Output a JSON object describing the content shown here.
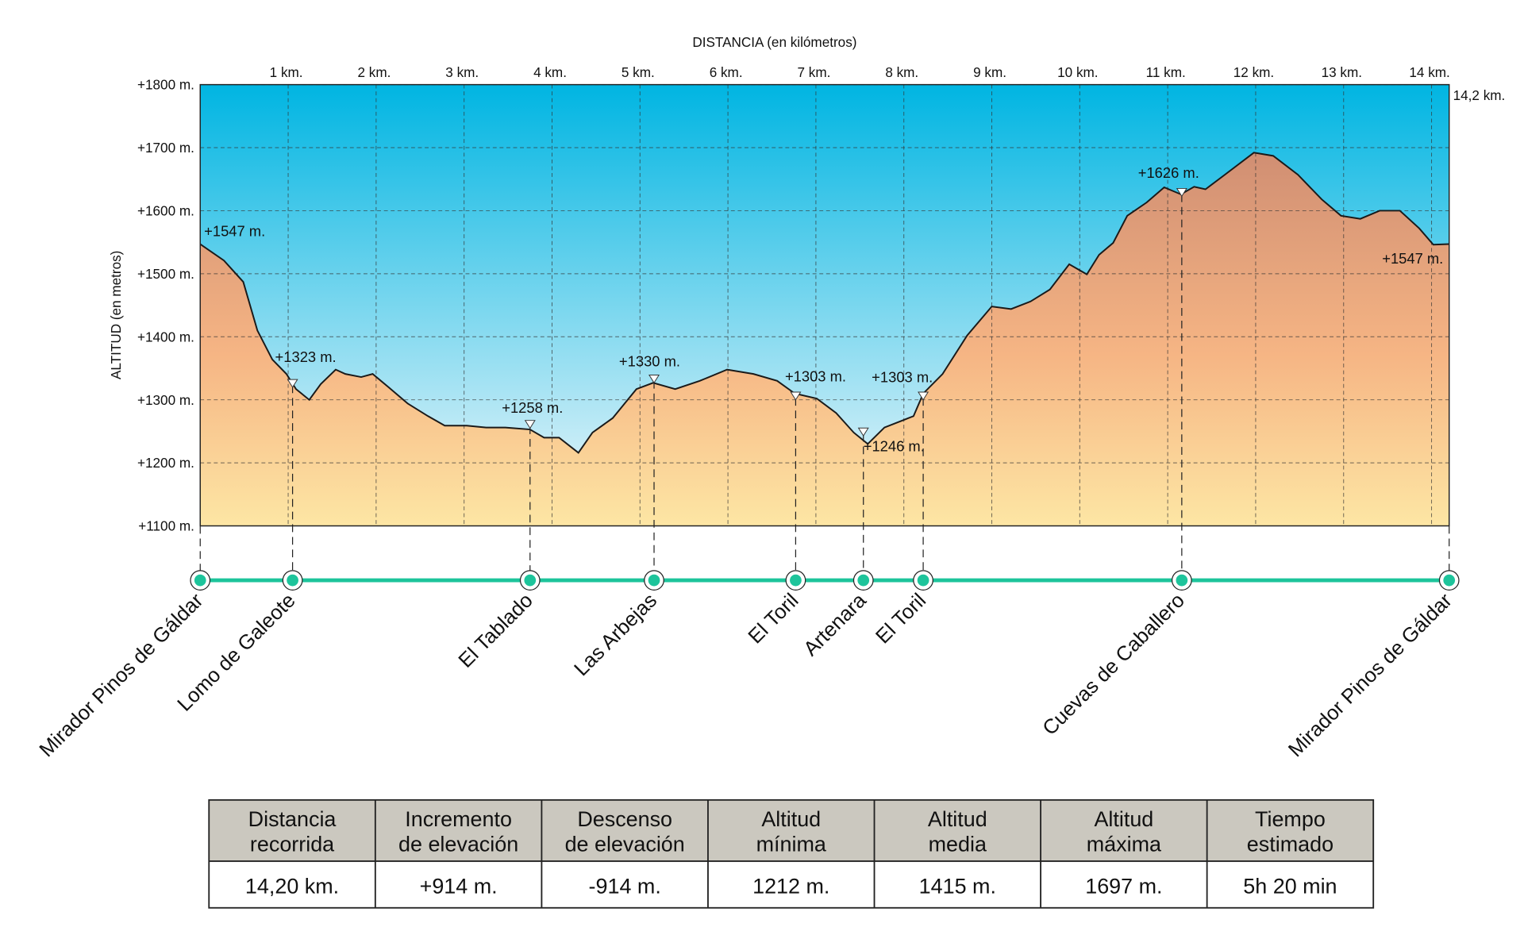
{
  "chart_data": {
    "type": "area",
    "x_label": "DISTANCIA (en kilómetros)",
    "y_label": "ALTITUD (en metros)",
    "xlim": [
      0,
      14.2
    ],
    "ylim": [
      1100,
      1800
    ],
    "xticks": [
      {
        "value": 1,
        "label": "1 km."
      },
      {
        "value": 2,
        "label": "2 km."
      },
      {
        "value": 3,
        "label": "3 km."
      },
      {
        "value": 4,
        "label": "4 km."
      },
      {
        "value": 5,
        "label": "5 km."
      },
      {
        "value": 6,
        "label": "6 km."
      },
      {
        "value": 7,
        "label": "7 km."
      },
      {
        "value": 8,
        "label": "8 km."
      },
      {
        "value": 9,
        "label": "9 km."
      },
      {
        "value": 10,
        "label": "10 km."
      },
      {
        "value": 11,
        "label": "11 km."
      },
      {
        "value": 12,
        "label": "12 km."
      },
      {
        "value": 13,
        "label": "13 km."
      },
      {
        "value": 14,
        "label": "14 km."
      },
      {
        "value": 14.2,
        "label": "14,2 km."
      }
    ],
    "yticks": [
      {
        "value": 1100,
        "label": "+1100 m."
      },
      {
        "value": 1200,
        "label": "+1200 m."
      },
      {
        "value": 1300,
        "label": "+1300 m."
      },
      {
        "value": 1400,
        "label": "+1400 m."
      },
      {
        "value": 1500,
        "label": "+1500 m."
      },
      {
        "value": 1600,
        "label": "+1600 m."
      },
      {
        "value": 1700,
        "label": "+1700 m."
      },
      {
        "value": 1800,
        "label": "+1800 m."
      }
    ],
    "grid": true,
    "sky_colors": [
      "#00b5e2",
      "#f2f8fb"
    ],
    "terrain_colors": [
      "#cf8d72",
      "#f6b584",
      "#fde6a4"
    ],
    "route_color": "#1dc49b",
    "x": [
      0,
      0.27,
      0.49,
      0.65,
      0.82,
      0.98,
      1.09,
      1.24,
      1.37,
      1.54,
      1.65,
      1.83,
      1.96,
      2.14,
      2.36,
      2.59,
      2.78,
      3.03,
      3.25,
      3.47,
      3.75,
      3.91,
      4.08,
      4.3,
      4.46,
      4.69,
      4.96,
      5.15,
      5.4,
      5.68,
      5.99,
      6.29,
      6.56,
      6.76,
      7.01,
      7.23,
      7.43,
      7.59,
      7.78,
      8.0,
      8.11,
      8.22,
      8.44,
      8.72,
      9.0,
      9.22,
      9.44,
      9.66,
      9.88,
      10.08,
      10.22,
      10.38,
      10.54,
      10.76,
      10.96,
      11.15,
      11.3,
      11.43,
      11.65,
      11.98,
      12.2,
      12.48,
      12.75,
      12.97,
      13.19,
      13.41,
      13.64,
      13.86,
      14.02,
      14.2
    ],
    "values": [
      1547,
      1521,
      1487,
      1410,
      1364,
      1341,
      1317,
      1300,
      1325,
      1348,
      1341,
      1336,
      1341,
      1320,
      1294,
      1274,
      1259,
      1259,
      1256,
      1256,
      1253,
      1240,
      1240,
      1216,
      1248,
      1271,
      1317,
      1327,
      1317,
      1330,
      1348,
      1341,
      1330,
      1310,
      1302,
      1279,
      1248,
      1230,
      1256,
      1268,
      1274,
      1310,
      1341,
      1402,
      1448,
      1444,
      1456,
      1475,
      1515,
      1499,
      1530,
      1549,
      1592,
      1613,
      1637,
      1626,
      1638,
      1634,
      1657,
      1692,
      1687,
      1657,
      1618,
      1592,
      1587,
      1600,
      1600,
      1572,
      1546,
      1547
    ],
    "waypoints": {
      "names": [
        "Mirador Pinos de Gáldar",
        "Lomo de Galeote",
        "El Tablado",
        "Las Arbejas",
        "El Toril",
        "Artenara",
        "El Toril",
        "Cuevas de Caballero",
        "Mirador Pinos de Gáldar"
      ],
      "km": [
        0,
        1.05,
        3.75,
        5.16,
        6.77,
        7.54,
        8.22,
        11.16,
        14.2
      ],
      "elevation": [
        1547,
        1323,
        1258,
        1330,
        1303,
        1246,
        1303,
        1626,
        1547
      ],
      "elevation_labels": [
        "+1547 m.",
        "+1323 m.",
        "+1258 m.",
        "+1330 m.",
        "+1303 m.",
        "+1246 m.",
        "+1303 m.",
        "+1626 m.",
        "+1547 m."
      ]
    }
  },
  "table": {
    "headers": [
      [
        "Distancia",
        "recorrida"
      ],
      [
        "Incremento",
        "de elevación"
      ],
      [
        "Descenso",
        "de elevación"
      ],
      [
        "Altitud",
        "mínima"
      ],
      [
        "Altitud",
        "media"
      ],
      [
        "Altitud",
        "máxima"
      ],
      [
        "Tiempo",
        "estimado"
      ]
    ],
    "rows": [
      [
        "14,20 km.",
        "+914 m.",
        "-914 m.",
        "1212 m.",
        "1415 m.",
        "1697 m.",
        "5h 20 min"
      ]
    ]
  }
}
